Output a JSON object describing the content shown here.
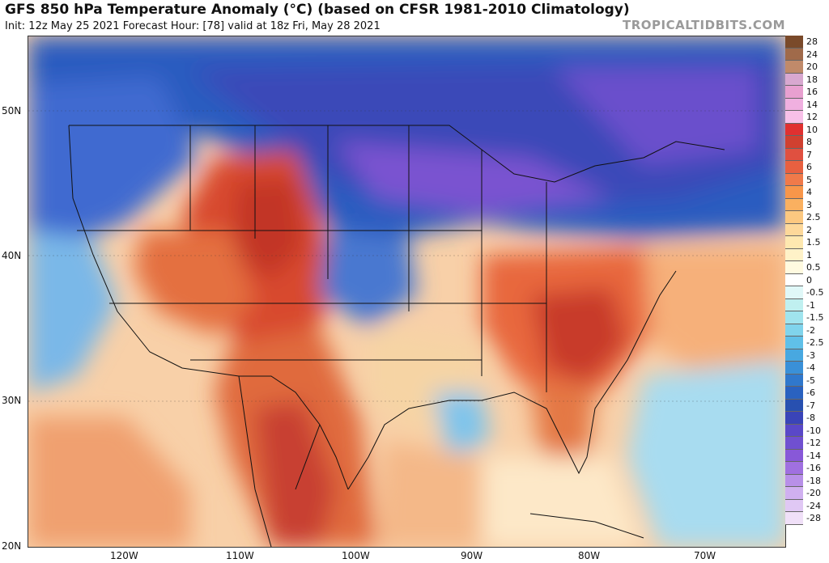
{
  "header": {
    "title": "GFS 850 hPa Temperature Anomaly (°C) (based on CFSR 1981-2010 Climatology)",
    "subtitle": "Init: 12z May 25 2021   Forecast Hour: [78]   valid at 18z Fri, May 28 2021",
    "brand": "TROPICALTIDBITS.COM"
  },
  "axes": {
    "lat_labels": [
      "50N",
      "40N",
      "30N",
      "20N"
    ],
    "lon_labels": [
      "120W",
      "110W",
      "100W",
      "90W",
      "80W",
      "70W"
    ]
  },
  "legend": {
    "labels": [
      "28",
      "24",
      "20",
      "18",
      "16",
      "14",
      "12",
      "10",
      "8",
      "7",
      "6",
      "5",
      "4",
      "3",
      "2.5",
      "2",
      "1.5",
      "1",
      "0.5",
      "0",
      "-0.5",
      "-1",
      "-1.5",
      "-2",
      "-2.5",
      "-3",
      "-4",
      "-5",
      "-6",
      "-7",
      "-8",
      "-10",
      "-12",
      "-14",
      "-16",
      "-18",
      "-20",
      "-24",
      "-28"
    ],
    "colors": [
      "#7a4a2a",
      "#a06a4a",
      "#c08a6a",
      "#d8a8d0",
      "#e8a0d0",
      "#f0b0e0",
      "#f8c0e8",
      "#e03030",
      "#d04030",
      "#e05040",
      "#e86040",
      "#f07a4a",
      "#f8964a",
      "#fab060",
      "#fcc880",
      "#fdd89a",
      "#fee8b0",
      "#fff2c8",
      "#fffae0",
      "#ffffff",
      "#e0f8f8",
      "#c0f0f0",
      "#a0e4ee",
      "#80d4ec",
      "#60c0e8",
      "#48a8e0",
      "#3a90d8",
      "#3078cc",
      "#2a62c0",
      "#2850b0",
      "#3a44b8",
      "#5a48c8",
      "#7050d0",
      "#8858d8",
      "#a070e0",
      "#b890e8",
      "#d0b0f0",
      "#e0c8f4",
      "#f0e0f8"
    ]
  }
}
